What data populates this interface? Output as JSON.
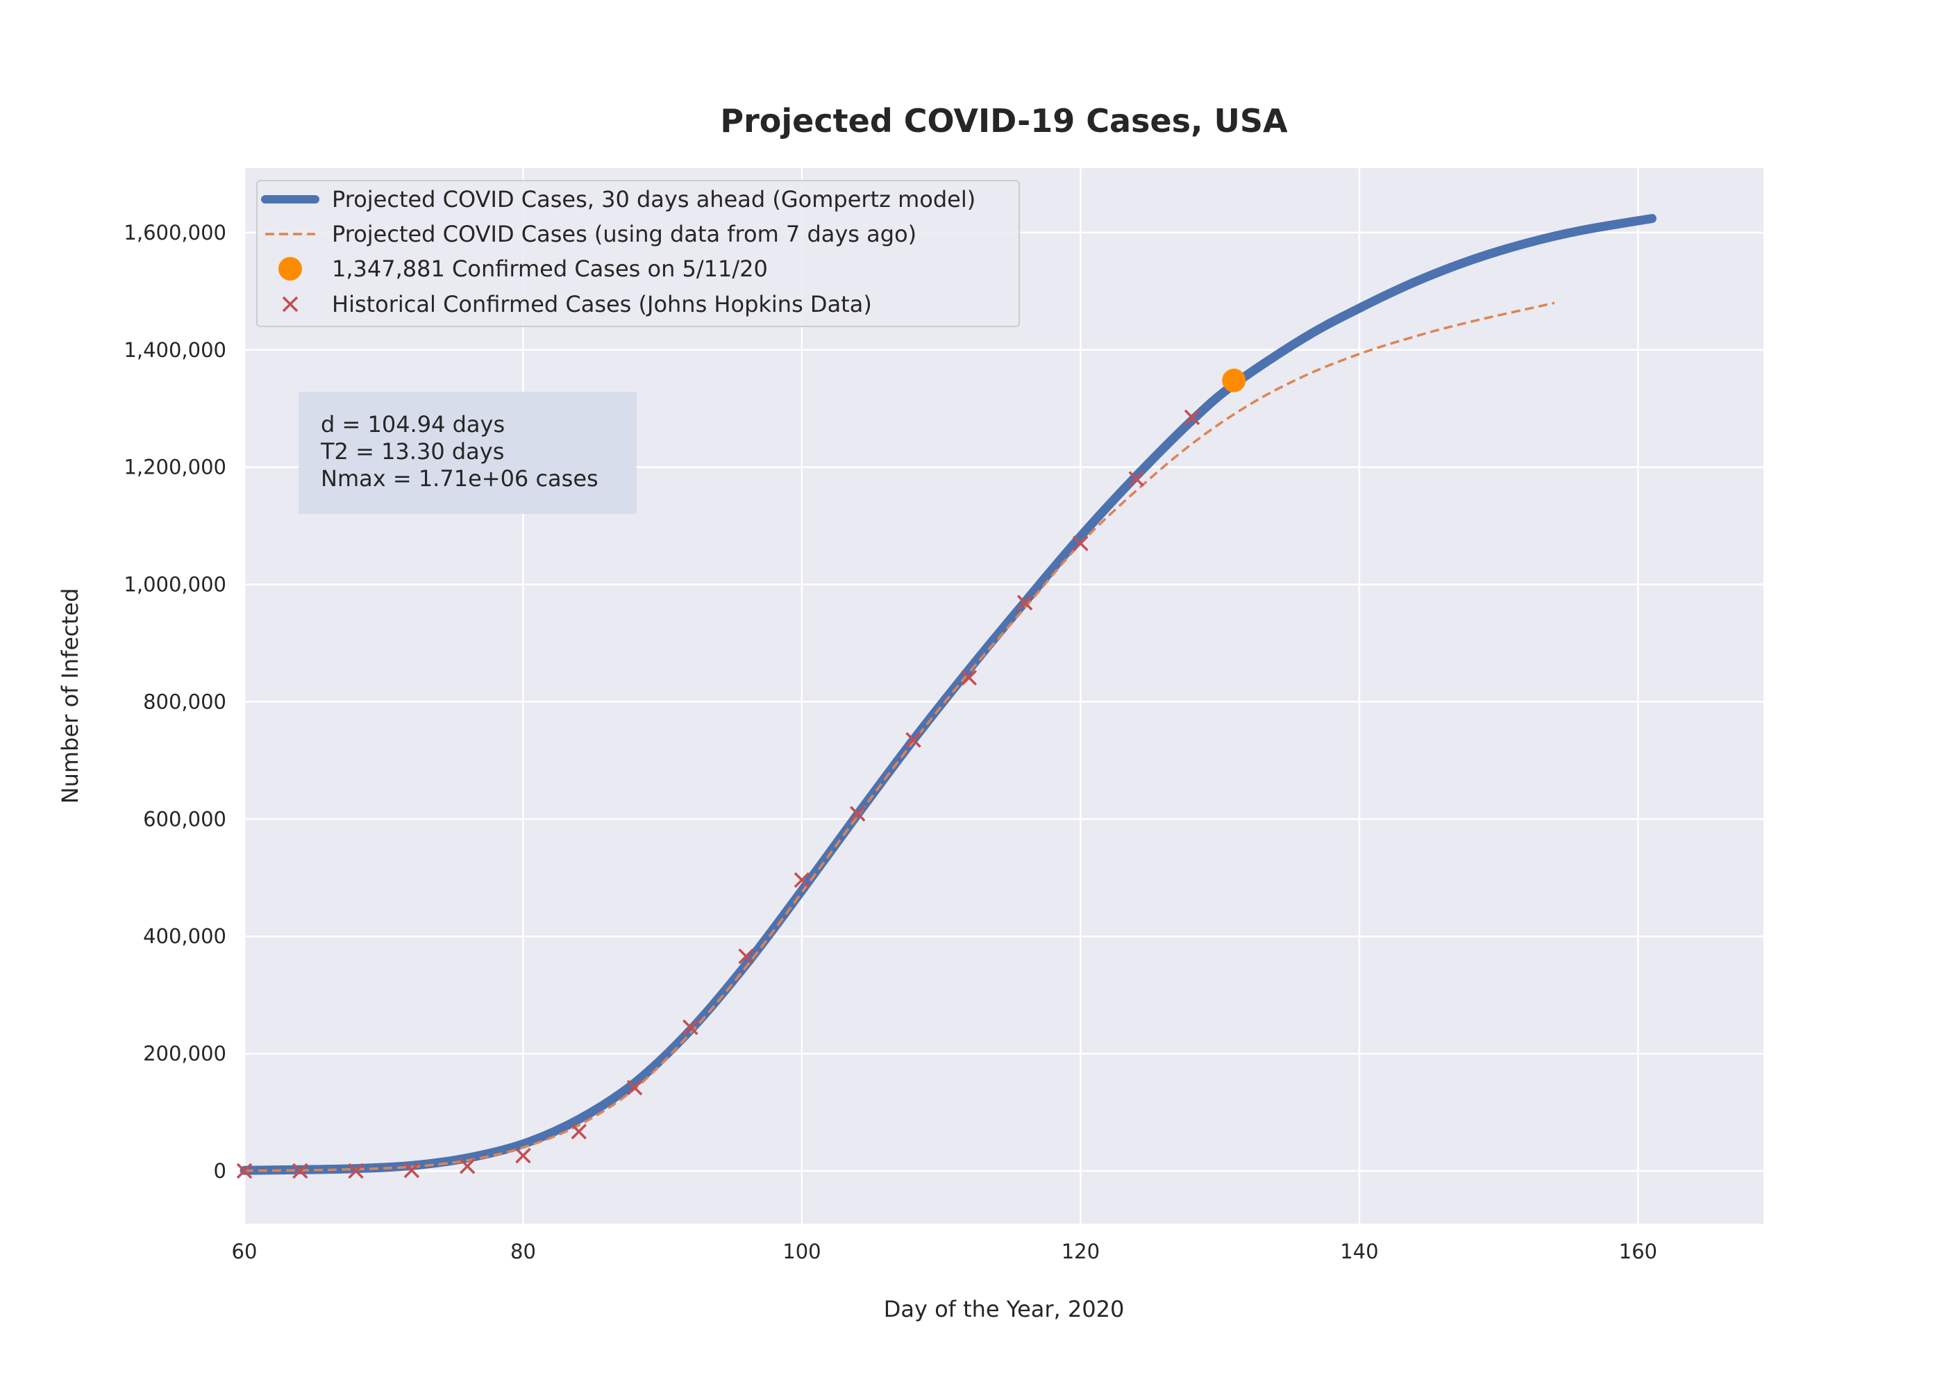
{
  "chart_data": {
    "type": "line",
    "title": "Projected COVID-19 Cases, USA",
    "xlabel": "Day of the Year, 2020",
    "ylabel": "Number of Infected",
    "xlim": [
      60,
      169
    ],
    "ylim": [
      -90000,
      1710000
    ],
    "xticks": [
      60,
      80,
      100,
      120,
      140,
      160
    ],
    "yticks": [
      0,
      200000,
      400000,
      600000,
      800000,
      1000000,
      1200000,
      1400000,
      1600000
    ],
    "ytick_labels": [
      "0",
      "200,000",
      "400,000",
      "600,000",
      "800,000",
      "1,000,000",
      "1,200,000",
      "1,400,000",
      "1,600,000"
    ],
    "grid": true,
    "legend_position": "top-left",
    "series": [
      {
        "name": "Projected COVID Cases, 30 days ahead (Gompertz model)",
        "kind": "line",
        "color": "#4c72b0",
        "x": [
          60,
          64,
          68,
          72,
          76,
          80,
          84,
          88,
          92,
          96,
          100,
          104,
          108,
          112,
          116,
          120,
          124,
          128,
          131,
          136,
          140,
          144,
          148,
          152,
          156,
          161
        ],
        "y": [
          1000,
          2000,
          4000,
          9000,
          22000,
          46000,
          88000,
          150000,
          240000,
          352000,
          478000,
          608000,
          735000,
          855000,
          970000,
          1082000,
          1185000,
          1280000,
          1341000,
          1420000,
          1471000,
          1516000,
          1553000,
          1582000,
          1604000,
          1624000
        ]
      },
      {
        "name": "Projected COVID Cases (using data from 7 days ago)",
        "kind": "dashed-line",
        "color": "#dd8452",
        "x": [
          60,
          64,
          68,
          72,
          76,
          80,
          84,
          88,
          92,
          96,
          100,
          104,
          108,
          112,
          116,
          120,
          124,
          128,
          132,
          136,
          140,
          144,
          148,
          154
        ],
        "y": [
          500,
          1000,
          3000,
          7000,
          18000,
          40000,
          78000,
          140000,
          235000,
          348000,
          475000,
          605000,
          732000,
          850000,
          960000,
          1070000,
          1160000,
          1240000,
          1305000,
          1355000,
          1393000,
          1423000,
          1448000,
          1480000
        ]
      },
      {
        "name": "1,347,881 Confirmed Cases on 5/11/20",
        "kind": "point",
        "color": "#ff8c00",
        "x": [
          131
        ],
        "y": [
          1347881
        ]
      },
      {
        "name": "Historical Confirmed Cases (Johns Hopkins Data)",
        "kind": "x-marker",
        "color": "#c44e52",
        "x": [
          60,
          64,
          68,
          72,
          76,
          80,
          84,
          88,
          92,
          96,
          100,
          104,
          108,
          112,
          116,
          120,
          124,
          128
        ],
        "y": [
          0,
          0,
          0,
          1000,
          8000,
          26000,
          67000,
          142000,
          245000,
          366000,
          496000,
          609000,
          735000,
          841000,
          969000,
          1070000,
          1180000,
          1285000
        ]
      }
    ],
    "annotation": [
      "d = 104.94 days",
      "T2 = 13.30 days",
      "Nmax = 1.71e+06 cases"
    ]
  }
}
